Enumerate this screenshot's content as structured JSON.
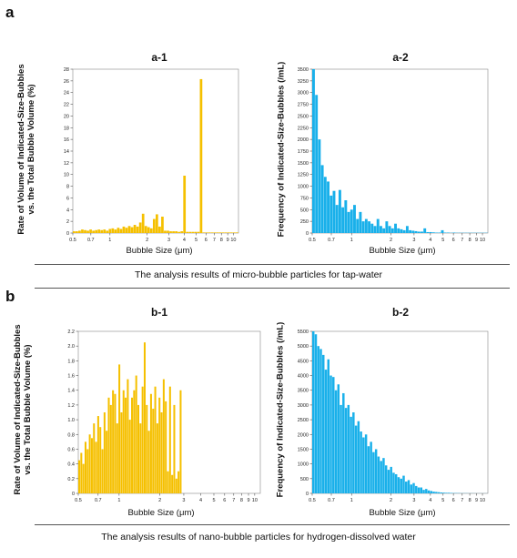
{
  "panels": {
    "a": {
      "letter": "a",
      "caption": "The analysis results of micro-bubble particles for tap-water"
    },
    "b": {
      "letter": "b",
      "caption": "The analysis results of nano-bubble particles for hydrogen-dissolved water"
    }
  },
  "chart_data": [
    {
      "id": "a1",
      "type": "bar",
      "title": "a-1",
      "xlabel": "Bubble Size (μm)",
      "ylabel_lines": [
        "Rate of Volume of Indicated-Size-Bubbles",
        "vs. the Total Bubble Volume (%)"
      ],
      "xscale": "log",
      "xlim": [
        0.5,
        11
      ],
      "ylim": [
        0,
        28
      ],
      "yticks": [
        0,
        2,
        4,
        6,
        8,
        10,
        12,
        14,
        16,
        18,
        20,
        22,
        24,
        26,
        28
      ],
      "xticks": [
        0.5,
        0.7,
        1,
        2,
        3,
        4,
        5,
        6,
        7,
        8,
        9,
        10
      ],
      "xtick_labels": [
        "0.5",
        "0.7",
        "1",
        "2",
        "3",
        "4",
        "5",
        "6",
        "7",
        "8",
        "9",
        "10"
      ],
      "color": "#f5c000",
      "bin_edges": [
        0.5,
        11
      ],
      "values": [
        0.3,
        0.3,
        0.4,
        0.6,
        0.5,
        0.4,
        0.6,
        0.4,
        0.5,
        0.6,
        0.5,
        0.6,
        0.4,
        0.7,
        0.8,
        0.6,
        0.9,
        0.7,
        1.1,
        0.9,
        1.2,
        1.0,
        1.4,
        1.1,
        1.8,
        3.3,
        1.2,
        1.0,
        0.8,
        2.4,
        3.2,
        1.1,
        2.8,
        0.4,
        0.4,
        0.3,
        0.3,
        0.3,
        0.2,
        0.3,
        9.8,
        0.2,
        0.2,
        0.2,
        0.2,
        0.2,
        26.3,
        0.1,
        0.1,
        0.1,
        0.1,
        0.1,
        0.1,
        0.1,
        0.1,
        0.1,
        0.1,
        0.1,
        0.1,
        0.1
      ]
    },
    {
      "id": "a2",
      "type": "bar",
      "title": "a-2",
      "xlabel": "Bubble Size (μm)",
      "ylabel_lines": [
        "Frequency of Indicated-Size-Bubbles (/mL)"
      ],
      "xscale": "log",
      "xlim": [
        0.5,
        11
      ],
      "ylim": [
        0,
        3500
      ],
      "yticks": [
        0,
        250,
        500,
        750,
        1000,
        1250,
        1500,
        1750,
        2000,
        2250,
        2500,
        2750,
        3000,
        3250,
        3500
      ],
      "xticks": [
        0.5,
        0.7,
        1,
        2,
        3,
        4,
        5,
        6,
        7,
        8,
        9,
        10
      ],
      "xtick_labels": [
        "0.5",
        "0.7",
        "1",
        "2",
        "3",
        "4",
        "5",
        "6",
        "7",
        "8",
        "9",
        "10"
      ],
      "color": "#19b0ea",
      "bin_edges": [
        0.5,
        11
      ],
      "values": [
        3500,
        2950,
        2000,
        1450,
        1200,
        1100,
        800,
        900,
        600,
        920,
        550,
        700,
        450,
        500,
        600,
        300,
        450,
        250,
        300,
        250,
        200,
        150,
        300,
        150,
        100,
        250,
        150,
        100,
        200,
        100,
        80,
        60,
        150,
        60,
        50,
        40,
        30,
        30,
        100,
        20,
        20,
        15,
        10,
        10,
        60,
        10,
        10,
        5,
        10,
        5,
        5,
        5,
        5,
        5,
        5,
        5,
        5,
        5,
        5,
        5
      ]
    },
    {
      "id": "b1",
      "type": "bar",
      "title": "b-1",
      "xlabel": "Bubble Size (μm)",
      "ylabel_lines": [
        "Rate of Volume of Indicated-Size-Bubbles",
        "vs. the Total Bubble Volume (%)"
      ],
      "xscale": "log",
      "xlim": [
        0.5,
        11
      ],
      "ylim": [
        0,
        2.2
      ],
      "yticks": [
        0,
        0.2,
        0.4,
        0.6,
        0.8,
        1.0,
        1.2,
        1.4,
        1.6,
        1.8,
        2.0,
        2.2
      ],
      "ytick_labels": [
        "0",
        "0.2",
        "0.4",
        "0.6",
        "0.8",
        "1.0",
        "1.2",
        "1.4",
        "1.6",
        "1.8",
        "2.0",
        "2.2"
      ],
      "xticks": [
        0.5,
        0.7,
        1,
        2,
        3,
        4,
        5,
        6,
        7,
        8,
        9,
        10
      ],
      "xtick_labels": [
        "0.5",
        "0.7",
        "1",
        "2",
        "3",
        "4",
        "5",
        "6",
        "7",
        "8",
        "9",
        "10"
      ],
      "color": "#f5c000",
      "bin_edges": [
        0.5,
        2.9
      ],
      "values": [
        0.45,
        0.55,
        0.4,
        0.7,
        0.6,
        0.8,
        0.75,
        0.95,
        0.7,
        1.05,
        0.9,
        0.6,
        1.1,
        0.85,
        1.3,
        1.2,
        1.4,
        1.35,
        0.95,
        1.75,
        1.1,
        1.4,
        1.3,
        1.55,
        1.0,
        1.3,
        1.4,
        1.6,
        1.2,
        0.95,
        1.45,
        2.05,
        1.2,
        0.85,
        1.35,
        1.15,
        1.45,
        0.95,
        1.3,
        1.1,
        1.55,
        1.25,
        0.3,
        1.45,
        0.25,
        1.2,
        0.2,
        0.3,
        1.4
      ]
    },
    {
      "id": "b2",
      "type": "bar",
      "title": "b-2",
      "xlabel": "Bubble Size (μm)",
      "ylabel_lines": [
        "Frequency of Indicated-Size-Bubbles (/mL)"
      ],
      "xscale": "log",
      "xlim": [
        0.5,
        11
      ],
      "ylim": [
        0,
        5500
      ],
      "yticks": [
        0,
        500,
        1000,
        1500,
        2000,
        2500,
        3000,
        3500,
        4000,
        4500,
        5000,
        5500
      ],
      "xticks": [
        0.5,
        0.7,
        1,
        2,
        3,
        4,
        5,
        6,
        7,
        8,
        9,
        10
      ],
      "xtick_labels": [
        "0.5",
        "0.7",
        "1",
        "2",
        "3",
        "4",
        "5",
        "6",
        "7",
        "8",
        "9",
        "10"
      ],
      "color": "#19b0ea",
      "bin_edges": [
        0.5,
        11
      ],
      "values": [
        5500,
        5400,
        5000,
        4900,
        4700,
        4200,
        4550,
        4000,
        3950,
        3500,
        3700,
        3000,
        3400,
        2900,
        3000,
        2600,
        2750,
        2300,
        2450,
        2100,
        1900,
        2000,
        1600,
        1750,
        1400,
        1500,
        1250,
        1100,
        1200,
        950,
        800,
        900,
        700,
        650,
        550,
        500,
        600,
        400,
        450,
        300,
        350,
        250,
        200,
        200,
        120,
        150,
        100,
        80,
        60,
        50,
        40,
        30,
        25,
        20,
        20,
        15,
        10,
        10,
        8,
        5,
        5,
        5,
        3,
        3,
        3,
        2,
        2,
        2,
        2,
        2
      ]
    }
  ]
}
